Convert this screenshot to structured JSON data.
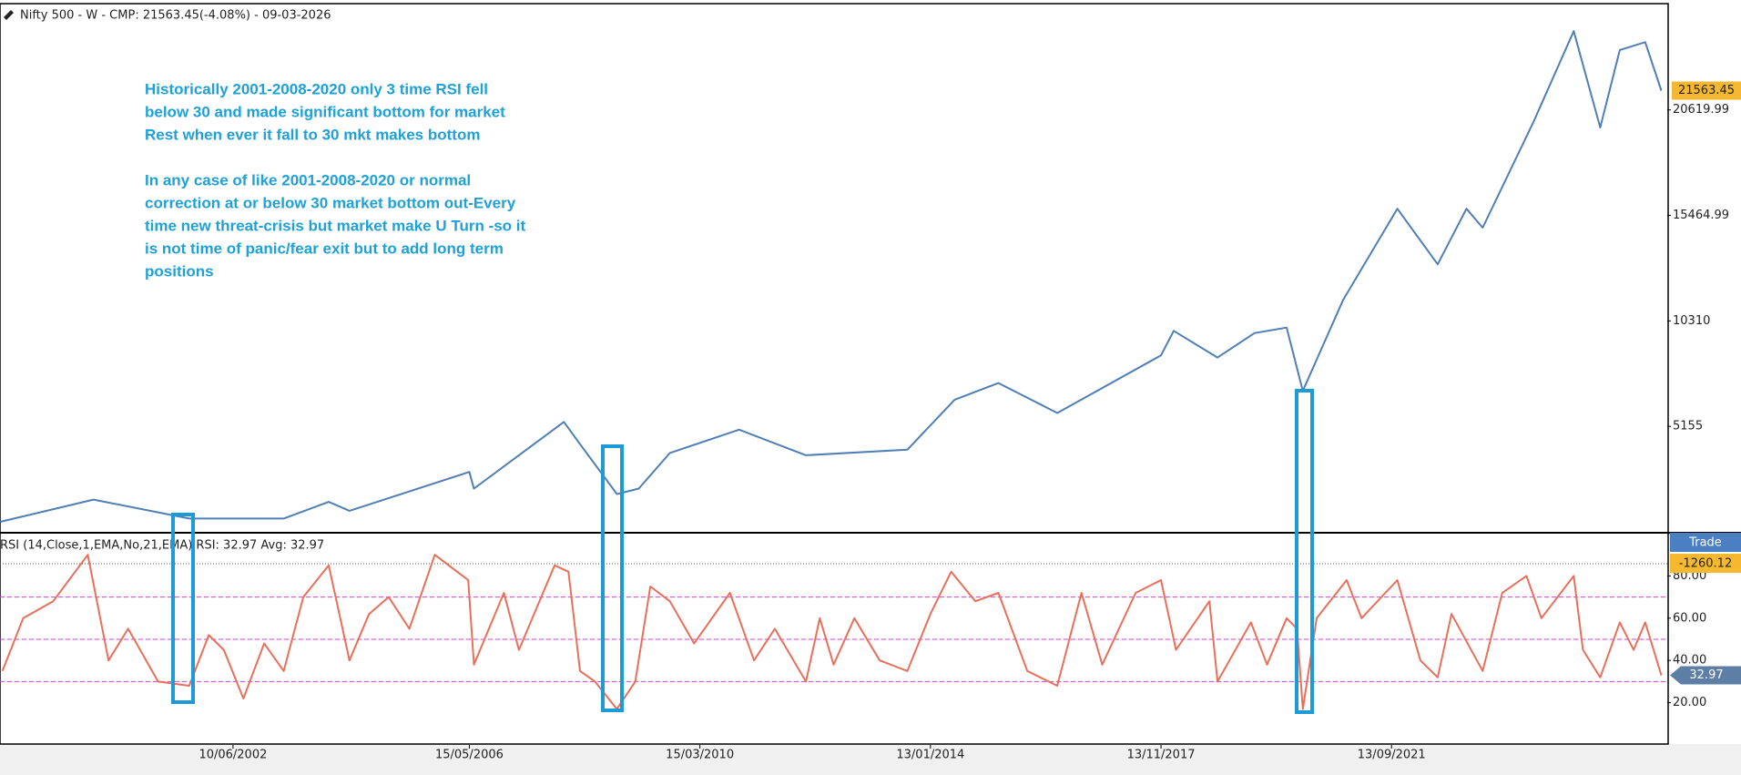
{
  "chart_data": [
    {
      "type": "line",
      "title": "Nifty 500 - W - CMP: 21563.45(-4.08%) - 09-03-2026",
      "annotation_lines": [
        "Historically 2001-2008-2020 only 3 time RSI fell",
        "below 30 and made significant bottom for market",
        "Rest when ever it fall to 30 mkt makes bottom",
        "",
        "In any case of like 2001-2008-2020 or normal",
        "correction at or below 30 market bottom out-Every",
        "time new threat-crisis but market make U Turn -so it",
        "is not time of panic/fear exit but to add long term",
        "positions"
      ],
      "x": [
        "1998-07-27",
        "2000-02-14",
        "2001-09-17",
        "2003-04-14",
        "2004-01-12",
        "2004-05-17",
        "2006-05-15",
        "2006-06-12",
        "2007-12-10",
        "2008-03-17",
        "2008-10-27",
        "2009-03-09",
        "2009-09-14",
        "2010-11-08",
        "2011-12-19",
        "2013-08-26",
        "2014-06-09",
        "2015-03-02",
        "2016-02-22",
        "2017-11-13",
        "2018-01-29",
        "2018-10-22",
        "2019-06-03",
        "2019-12-16",
        "2020-03-23",
        "2020-11-23",
        "2021-10-18",
        "2022-06-20",
        "2022-12-12",
        "2023-03-20",
        "2024-01-22",
        "2024-09-23",
        "2025-03-03",
        "2025-06-30",
        "2025-12-01",
        "2026-03-09"
      ],
      "values": [
        490,
        1574,
        650,
        650,
        1465,
        1030,
        2930,
        2116,
        5372,
        4287,
        1845,
        2116,
        3852,
        4992,
        3744,
        4015,
        6457,
        7271,
        5806,
        8627,
        9821,
        8519,
        9713,
        9984,
        6891,
        11340,
        15790,
        13077,
        15790,
        14867,
        20022,
        24471,
        19761,
        23549,
        23929,
        21563.45
      ],
      "color": "#4f7fb5",
      "xlim": [
        "1998-07-26",
        "2026-04-14"
      ],
      "ylim": [
        0,
        25800
      ],
      "yticks": [
        5155,
        10310,
        15464.99,
        20619.99
      ],
      "last_value_label": "21563.45"
    },
    {
      "type": "line",
      "title": "RSI (14,Close,1,EMA,No,21,EMA) RSI: 32.97 Avg: 32.97",
      "x": [
        "1998-08-10",
        "1998-12-14",
        "1999-06-14",
        "2000-01-10",
        "2000-05-15",
        "2000-09-11",
        "2001-03-12",
        "2001-09-17",
        "2002-01-14",
        "2002-04-15",
        "2002-08-12",
        "2002-12-16",
        "2003-04-14",
        "2003-08-11",
        "2004-01-12",
        "2004-05-17",
        "2004-09-13",
        "2005-01-10",
        "2005-05-16",
        "2005-10-17",
        "2006-05-08",
        "2006-06-12",
        "2006-12-11",
        "2007-03-12",
        "2007-10-15",
        "2008-01-07",
        "2008-03-17",
        "2008-06-16",
        "2008-10-27",
        "2009-02-16",
        "2009-05-18",
        "2009-09-14",
        "2010-02-08",
        "2010-09-13",
        "2011-02-07",
        "2011-06-13",
        "2011-12-19",
        "2012-03-12",
        "2012-06-04",
        "2012-10-08",
        "2013-03-11",
        "2013-08-26",
        "2014-01-13",
        "2014-05-19",
        "2014-10-13",
        "2015-03-02",
        "2015-08-24",
        "2016-02-22",
        "2016-07-18",
        "2016-11-21",
        "2017-06-12",
        "2017-11-13",
        "2018-02-12",
        "2018-09-03",
        "2018-10-22",
        "2019-05-13",
        "2019-08-19",
        "2019-12-16",
        "2020-02-17",
        "2020-03-23",
        "2020-06-15",
        "2020-12-14",
        "2021-03-15",
        "2021-10-18",
        "2022-03-07",
        "2022-06-20",
        "2022-09-12",
        "2023-03-20",
        "2023-07-17",
        "2023-12-11",
        "2024-03-11",
        "2024-09-23",
        "2024-11-18",
        "2025-03-03",
        "2025-06-30",
        "2025-09-22",
        "2025-12-01",
        "2026-03-09"
      ],
      "values": [
        35,
        60,
        68,
        90,
        40,
        55,
        30,
        28,
        52,
        45,
        22,
        48,
        35,
        70,
        85,
        40,
        62,
        70,
        55,
        90,
        78,
        38,
        72,
        45,
        85,
        82,
        35,
        30,
        17,
        30,
        75,
        68,
        48,
        72,
        40,
        55,
        30,
        60,
        38,
        60,
        40,
        35,
        62,
        82,
        68,
        72,
        35,
        28,
        72,
        38,
        72,
        78,
        45,
        68,
        30,
        58,
        38,
        60,
        55,
        17,
        60,
        78,
        60,
        78,
        40,
        32,
        62,
        35,
        72,
        80,
        60,
        80,
        45,
        32,
        58,
        45,
        58,
        32.97
      ],
      "color": "#e8705a",
      "xlim": [
        "1998-07-26",
        "2026-04-14"
      ],
      "ylim": [
        0,
        100
      ],
      "yticks": [
        {
          "value": 20,
          "label": "20.00"
        },
        {
          "value": 40,
          "label": "40.00"
        },
        {
          "value": 60,
          "label": "60.00"
        },
        {
          "value": 80,
          "label": "80.00"
        }
      ],
      "levels": [
        30,
        50,
        70
      ],
      "level_color": "#cc44cc",
      "xticks": [
        {
          "value": "2002-06-10",
          "label": "10/06/2002"
        },
        {
          "value": "2006-05-15",
          "label": "15/05/2006"
        },
        {
          "value": "2010-03-15",
          "label": "15/03/2010"
        },
        {
          "value": "2014-01-13",
          "label": "13/01/2014"
        },
        {
          "value": "2017-11-13",
          "label": "13/11/2017"
        },
        {
          "value": "2021-09-13",
          "label": "13/09/2021"
        }
      ],
      "trade_label": "Trade",
      "trade_value": "-1260.12",
      "last_value_label": "32.97"
    }
  ]
}
